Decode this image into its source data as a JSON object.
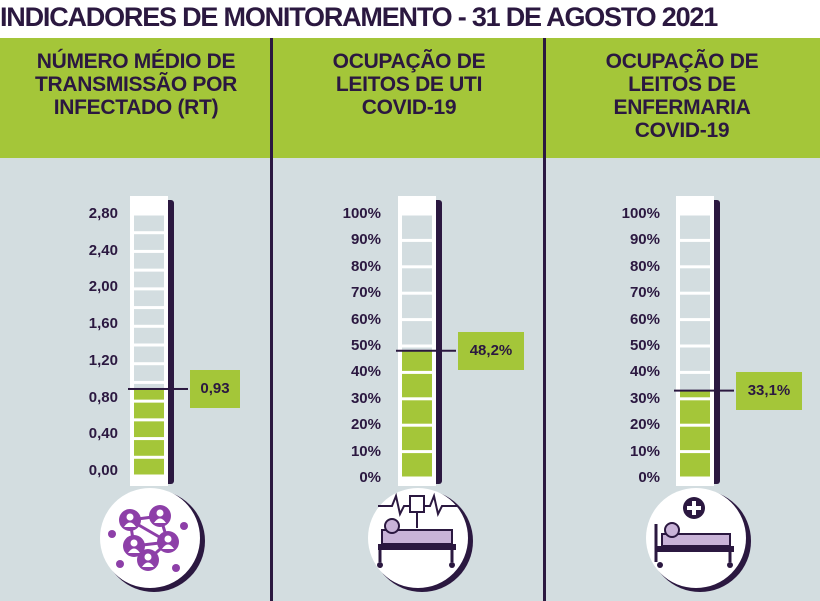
{
  "title": "INDICADORES DE MONITORAMENTO - 31 DE AGOSTO 2021",
  "colors": {
    "green": "#a4c639",
    "dark_purple": "#2b1840",
    "gauge_bg": "#d3dde0",
    "icon_purple": "#8d3fa8"
  },
  "panels": [
    {
      "title_lines": [
        "NÚMERO MÉDIO DE",
        "TRANSMISSÃO POR",
        "INFECTADO (RT)"
      ],
      "value_label": "0,93",
      "icon": "people-network-icon"
    },
    {
      "title_lines": [
        "OCUPAÇÃO DE",
        "LEITOS DE UTI",
        "COVID-19"
      ],
      "value_label": "48,2%",
      "icon": "icu-bed-monitor-icon"
    },
    {
      "title_lines": [
        "OCUPAÇÃO DE",
        "LEITOS DE",
        "ENFERMARIA",
        "COVID-19"
      ],
      "value_label": "33,1%",
      "icon": "hospital-bed-cross-icon"
    }
  ],
  "chart_data": [
    {
      "type": "bar",
      "title": "NÚMERO MÉDIO DE TRANSMISSÃO POR INFECTADO (RT)",
      "categories": [
        "Rt"
      ],
      "values": [
        0.93
      ],
      "ylim": [
        0,
        2.8
      ],
      "tick_labels": [
        "2,80",
        "2,40",
        "2,00",
        "1,60",
        "1,20",
        "0,80",
        "0,40",
        "0,00"
      ]
    },
    {
      "type": "bar",
      "title": "OCUPAÇÃO DE LEITOS DE UTI COVID-19",
      "categories": [
        "UTI"
      ],
      "values": [
        48.2
      ],
      "ylim": [
        0,
        100
      ],
      "tick_labels": [
        "100%",
        "90%",
        "80%",
        "70%",
        "60%",
        "50%",
        "40%",
        "30%",
        "20%",
        "10%",
        "0%"
      ]
    },
    {
      "type": "bar",
      "title": "OCUPAÇÃO DE LEITOS DE ENFERMARIA COVID-19",
      "categories": [
        "Enfermaria"
      ],
      "values": [
        33.1
      ],
      "ylim": [
        0,
        100
      ],
      "tick_labels": [
        "100%",
        "90%",
        "80%",
        "70%",
        "60%",
        "50%",
        "40%",
        "30%",
        "20%",
        "10%",
        "0%"
      ]
    }
  ]
}
